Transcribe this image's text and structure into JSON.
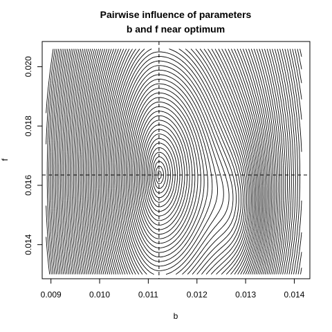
{
  "chart_data": {
    "type": "contour",
    "title_lines": [
      "Pairwise influence of parameters",
      "b and f near optimum"
    ],
    "xlabel": "b",
    "ylabel": "f",
    "xlim": [
      0.00882,
      0.01432
    ],
    "ylim": [
      0.01285,
      0.02085
    ],
    "x_ticks": [
      0.009,
      0.01,
      0.011,
      0.012,
      0.013,
      0.014
    ],
    "x_tick_labels": [
      "0.009",
      "0.010",
      "0.011",
      "0.012",
      "0.013",
      "0.014"
    ],
    "y_ticks": [
      0.014,
      0.016,
      0.018,
      0.02
    ],
    "y_tick_labels": [
      "0.014",
      "0.016",
      "0.018",
      "0.020"
    ],
    "data_range": {
      "b": [
        0.0089,
        0.01415
      ],
      "f": [
        0.013,
        0.0206
      ]
    },
    "optimum": {
      "b": 0.01122,
      "f": 0.01635
    },
    "reference_lines": [
      {
        "orientation": "vertical",
        "value": 0.01122,
        "style": "dashed"
      },
      {
        "orientation": "horizontal",
        "value": 0.01635,
        "style": "dashed"
      }
    ],
    "contour_levels": 70,
    "grid": false,
    "legend": "none",
    "line_color": "#000000"
  }
}
